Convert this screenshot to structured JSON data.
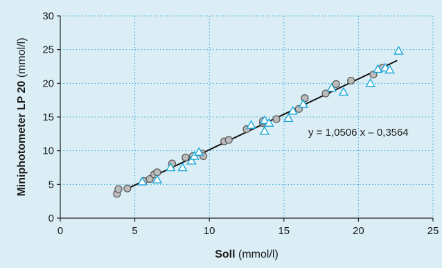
{
  "chart_data": {
    "type": "scatter",
    "title": "",
    "xlabel": {
      "bold": "Soll",
      "rest": " (mmol/l)"
    },
    "ylabel": {
      "bold": "Miniphotometer LP 20",
      "rest": " (mmol/l)"
    },
    "xlim": [
      0,
      25
    ],
    "ylim": [
      0,
      30
    ],
    "x_ticks": [
      "0",
      "5",
      "10",
      "15",
      "20",
      "25"
    ],
    "y_ticks": [
      "0",
      "5",
      "10",
      "15",
      "20",
      "25",
      "30"
    ],
    "grid": true,
    "regression": {
      "label": "y = 1,0506 x – 0,3564",
      "slope": 1.0506,
      "intercept": -0.3564,
      "x_range": [
        4.5,
        22.6
      ]
    },
    "series": [
      {
        "marker": "circle",
        "color": "#bcbcbc",
        "points": [
          [
            3.8,
            3.6
          ],
          [
            3.9,
            4.3
          ],
          [
            4.5,
            4.4
          ],
          [
            5.6,
            5.5
          ],
          [
            6.0,
            5.8
          ],
          [
            6.3,
            6.5
          ],
          [
            6.5,
            6.8
          ],
          [
            7.5,
            8.1
          ],
          [
            8.4,
            9.0
          ],
          [
            8.9,
            9.2
          ],
          [
            9.5,
            9.6
          ],
          [
            9.6,
            9.2
          ],
          [
            11.0,
            11.4
          ],
          [
            11.3,
            11.6
          ],
          [
            12.5,
            13.2
          ],
          [
            13.6,
            14.1
          ],
          [
            13.6,
            14.4
          ],
          [
            14.5,
            14.7
          ],
          [
            16.0,
            16.2
          ],
          [
            16.4,
            17.8
          ],
          [
            17.8,
            18.5
          ],
          [
            18.5,
            19.9
          ],
          [
            19.5,
            20.4
          ],
          [
            21.0,
            21.3
          ],
          [
            21.6,
            22.3
          ]
        ]
      },
      {
        "marker": "triangle",
        "color": "#1aa7d8",
        "points": [
          [
            5.5,
            5.4
          ],
          [
            6.5,
            5.7
          ],
          [
            7.4,
            7.5
          ],
          [
            8.2,
            7.5
          ],
          [
            8.8,
            8.5
          ],
          [
            9.0,
            9.2
          ],
          [
            9.3,
            9.8
          ],
          [
            12.8,
            13.8
          ],
          [
            13.7,
            12.9
          ],
          [
            13.7,
            14.5
          ],
          [
            14.0,
            14.1
          ],
          [
            15.3,
            14.8
          ],
          [
            15.6,
            15.9
          ],
          [
            16.3,
            16.9
          ],
          [
            18.2,
            19.3
          ],
          [
            19.0,
            18.7
          ],
          [
            20.8,
            20.0
          ],
          [
            21.3,
            22.1
          ],
          [
            21.8,
            22.3
          ],
          [
            22.1,
            22.0
          ],
          [
            22.7,
            24.8
          ]
        ]
      }
    ]
  }
}
